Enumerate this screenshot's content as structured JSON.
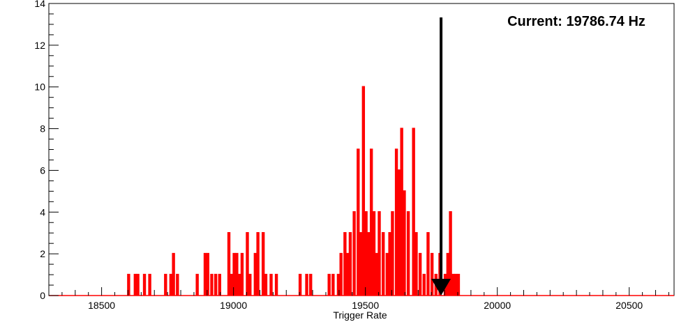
{
  "chart_data": {
    "type": "bar",
    "title": "",
    "xlabel": "Trigger Rate",
    "ylabel": "",
    "xlim": [
      18300,
      20670
    ],
    "ylim": [
      0,
      14
    ],
    "x_major_ticks": [
      18500,
      19000,
      19500,
      20000,
      20500
    ],
    "x_tick_labels": [
      "18500",
      "19000",
      "19500",
      "20000",
      "20500"
    ],
    "y_major_ticks": [
      0,
      2,
      4,
      6,
      8,
      10,
      12,
      14
    ],
    "y_tick_labels": [
      "0",
      "2",
      "4",
      "6",
      "8",
      "10",
      "12",
      "14"
    ],
    "grid": false,
    "legend": "none",
    "series_color": "#ff0000",
    "bin_width": 5,
    "bins": [
      [
        18600,
        1
      ],
      [
        18625,
        1
      ],
      [
        18635,
        1
      ],
      [
        18660,
        1
      ],
      [
        18680,
        1
      ],
      [
        18740,
        1
      ],
      [
        18760,
        1
      ],
      [
        18770,
        2
      ],
      [
        18785,
        1
      ],
      [
        18860,
        1
      ],
      [
        18890,
        2
      ],
      [
        18900,
        2
      ],
      [
        18915,
        1
      ],
      [
        18930,
        1
      ],
      [
        18945,
        1
      ],
      [
        18980,
        3
      ],
      [
        18990,
        1
      ],
      [
        19000,
        2
      ],
      [
        19010,
        2
      ],
      [
        19020,
        1
      ],
      [
        19030,
        2
      ],
      [
        19050,
        3
      ],
      [
        19060,
        1
      ],
      [
        19080,
        2
      ],
      [
        19090,
        3
      ],
      [
        19110,
        3
      ],
      [
        19120,
        1
      ],
      [
        19140,
        1
      ],
      [
        19160,
        1
      ],
      [
        19250,
        1
      ],
      [
        19275,
        1
      ],
      [
        19290,
        1
      ],
      [
        19360,
        1
      ],
      [
        19375,
        1
      ],
      [
        19395,
        1
      ],
      [
        19405,
        2
      ],
      [
        19420,
        3
      ],
      [
        19430,
        2
      ],
      [
        19440,
        3
      ],
      [
        19455,
        4
      ],
      [
        19470,
        7
      ],
      [
        19480,
        3
      ],
      [
        19490,
        10
      ],
      [
        19500,
        4
      ],
      [
        19510,
        3
      ],
      [
        19520,
        7
      ],
      [
        19530,
        4
      ],
      [
        19540,
        2
      ],
      [
        19550,
        4
      ],
      [
        19565,
        3
      ],
      [
        19580,
        2
      ],
      [
        19590,
        3
      ],
      [
        19600,
        4
      ],
      [
        19615,
        7
      ],
      [
        19625,
        6
      ],
      [
        19635,
        8
      ],
      [
        19645,
        5
      ],
      [
        19660,
        4
      ],
      [
        19680,
        8
      ],
      [
        19690,
        3
      ],
      [
        19705,
        2
      ],
      [
        19720,
        1
      ],
      [
        19735,
        3
      ],
      [
        19750,
        2
      ],
      [
        19765,
        1
      ],
      [
        19780,
        2
      ],
      [
        19800,
        1
      ],
      [
        19810,
        2
      ],
      [
        19820,
        4
      ],
      [
        19830,
        1
      ],
      [
        19840,
        1
      ],
      [
        19850,
        1
      ]
    ],
    "marker": {
      "x": 19786.74,
      "label": "Current: 19786.74 Hz",
      "color": "#000000"
    }
  }
}
